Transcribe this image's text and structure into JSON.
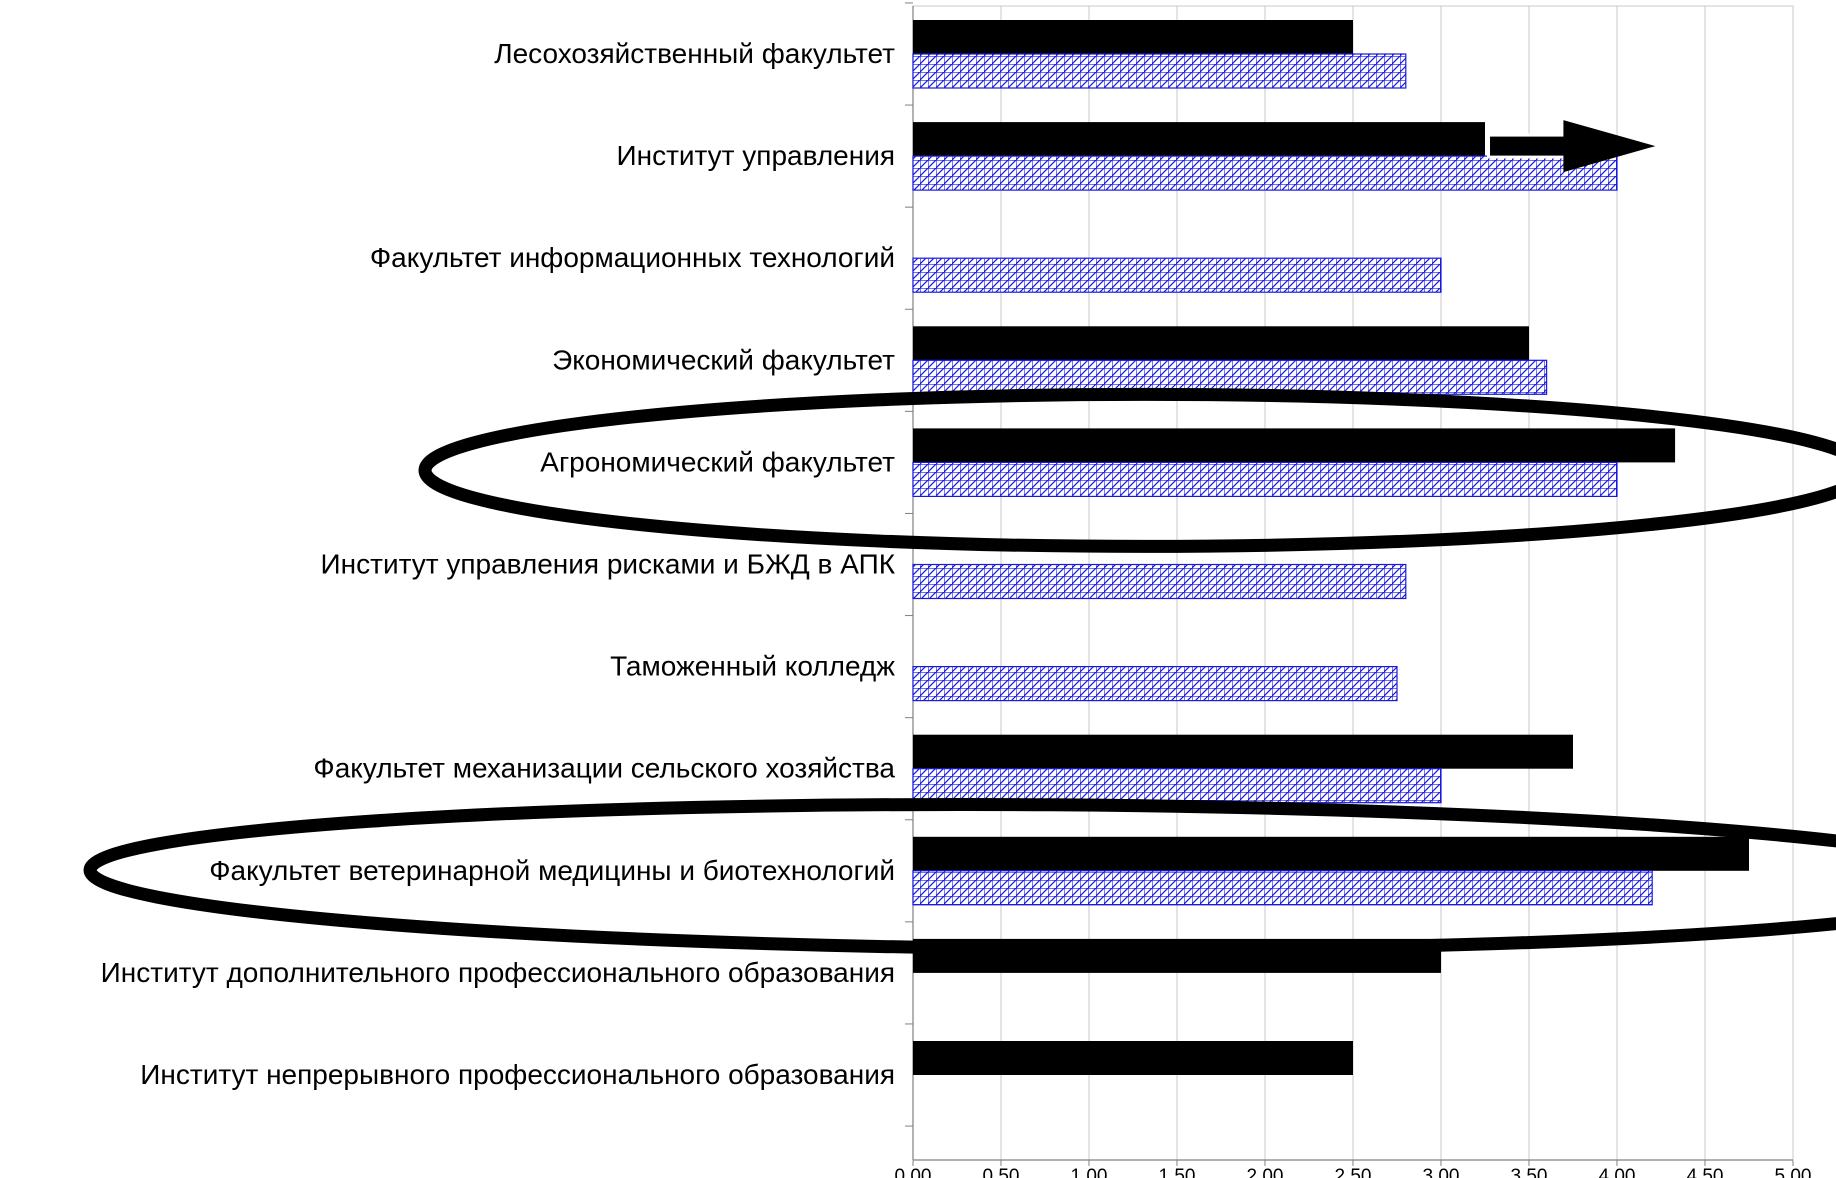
{
  "chart_data": {
    "type": "bar",
    "orientation": "horizontal",
    "title": "",
    "xlabel": "",
    "ylabel": "",
    "xlim": [
      0,
      5
    ],
    "x_ticks": [
      "0,00",
      "0,50",
      "1,00",
      "1,50",
      "2,00",
      "2,50",
      "3,00",
      "3,50",
      "4,00",
      "4,50",
      "5,00"
    ],
    "x_tick_values": [
      0,
      0.5,
      1,
      1.5,
      2,
      2.5,
      3,
      3.5,
      4,
      4.5,
      5
    ],
    "grid": true,
    "legend": "none",
    "categories": [
      "Лесохозяйственный факультет",
      "Институт управления",
      "Факультет информационных технологий",
      "Экономический факультет",
      "Агрономический факультет",
      "Институт управления рисками и БЖД в АПК",
      "Таможенный колледж",
      "Факультет механизации сельского хозяйства",
      "Факультет ветеринарной медицины и биотехнологий",
      "Институт дополнительного профессионального образования",
      "Институт непрерывного профессионального образования"
    ],
    "series": [
      {
        "style": "solid",
        "color": "#000000",
        "values": [
          2.5,
          3.25,
          null,
          3.5,
          4.33,
          null,
          null,
          3.75,
          4.75,
          3.0,
          2.5
        ]
      },
      {
        "style": "crosshatch",
        "color": "#1a1adb",
        "values": [
          2.8,
          4.0,
          3.0,
          3.6,
          4.0,
          2.8,
          2.75,
          3.0,
          4.2,
          null,
          null
        ]
      }
    ],
    "annotations": [
      {
        "type": "arrow",
        "category_index": 1,
        "from": 3.27,
        "to": 4.15
      },
      {
        "type": "ellipse",
        "category_index": 4
      },
      {
        "type": "ellipse",
        "category_index": 8
      }
    ]
  }
}
